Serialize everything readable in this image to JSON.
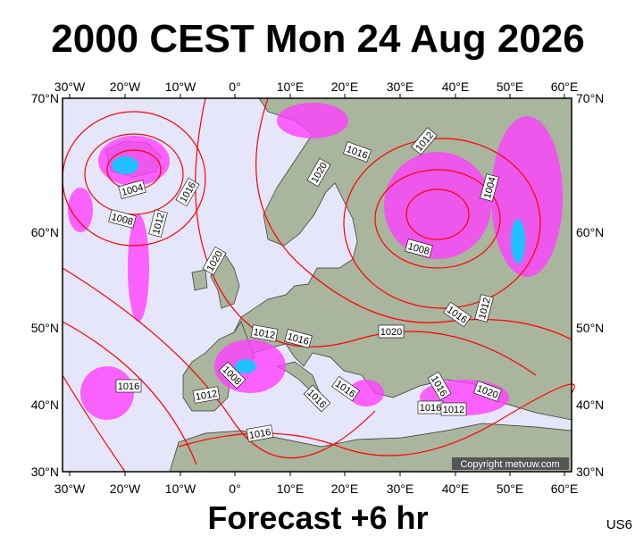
{
  "header": {
    "title": "2000 CEST Mon 24 Aug 2026"
  },
  "map": {
    "lon_labels": [
      "30°W",
      "20°W",
      "10°W",
      "0°",
      "10°E",
      "20°E",
      "30°E",
      "40°E",
      "50°E",
      "60°E"
    ],
    "lat_labels": [
      "70°N",
      "60°N",
      "50°N",
      "40°N",
      "30°N"
    ],
    "isobar_labels": [
      "1004",
      "1016",
      "1008",
      "1012",
      "1020",
      "1020",
      "1016",
      "1012",
      "1004",
      "1008",
      "1016",
      "1012",
      "1020",
      "1012",
      "1016",
      "1008",
      "1016",
      "1012",
      "1016",
      "1016",
      "1016",
      "1020",
      "1016",
      "1012",
      "1016"
    ],
    "copyright": "Copyright metvuw.com"
  },
  "footer": {
    "forecast": "Forecast +6 hr",
    "code": "US6"
  }
}
